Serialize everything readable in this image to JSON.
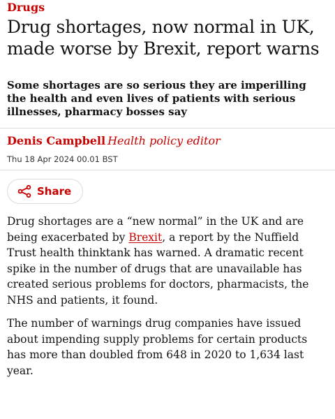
{
  "article": {
    "kicker": "Drugs",
    "headline": "Drug shortages, now normal in UK, made worse by Brexit, report warns",
    "standfirst": "Some shortages are so serious they are imperilling the health and even lives of patients with serious illnesses, pharmacy bosses say",
    "byline": {
      "author": "Denis Campbell",
      "role": "Health policy editor"
    },
    "date": "Thu 18 Apr 2024 00.01 BST",
    "share_label": "Share",
    "share_icon": "share-icon",
    "paragraph1": {
      "before_link": "Drug shortages are a “new normal” in the UK and are being exacerbated by ",
      "link_text": "Brexit",
      "after_link": ", a report by the Nuffield Trust health thinktank has warned. A dramatic recent spike in the number of drugs that are unavailable has created serious problems for doctors, pharmacists, the NHS and patients, it found."
    },
    "paragraph2": "The number of warnings drug companies have issued about impending supply problems for certain products has more than doubled from 648 in 2020 to 1,634 last year."
  },
  "colors": {
    "accent": "#c70000",
    "text": "#121212",
    "divider": "#dcdcdc"
  }
}
